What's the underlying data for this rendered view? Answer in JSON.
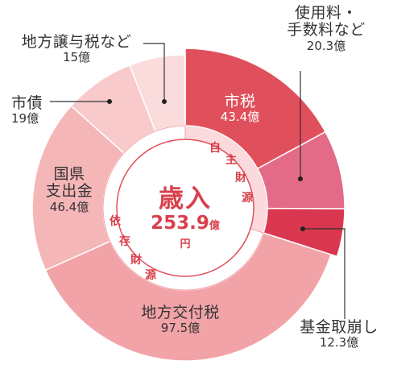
{
  "chart_data": {
    "type": "pie",
    "center": {
      "title": "歳入",
      "total": "253.9",
      "unit": "億円"
    },
    "groups": [
      {
        "name": "自主財源",
        "chars": [
          "自",
          "主",
          "財",
          "源"
        ]
      },
      {
        "name": "依存財源",
        "chars": [
          "依",
          "存",
          "財",
          "源"
        ]
      }
    ],
    "slices": [
      {
        "name": "市税",
        "value": 43.4,
        "value_label": "43.4億",
        "group": "自主財源",
        "color": "#e0505c"
      },
      {
        "name": "使用料・手数料など",
        "name_lines": [
          "使用料・",
          "手数料など"
        ],
        "value": 20.3,
        "value_label": "20.3億",
        "group": "自主財源",
        "color": "#e46b88"
      },
      {
        "name": "基金取崩し",
        "value": 12.3,
        "value_label": "12.3億",
        "group": "自主財源",
        "color": "#d9374f"
      },
      {
        "name": "地方交付税",
        "value": 97.5,
        "value_label": "97.5億",
        "group": "依存財源",
        "color": "#f2a3a7"
      },
      {
        "name": "国県支出金",
        "name_lines": [
          "国県",
          "支出金"
        ],
        "value": 46.4,
        "value_label": "46.4億",
        "group": "依存財源",
        "color": "#f5b6b8"
      },
      {
        "name": "市債",
        "value": 19,
        "value_label": "19億",
        "group": "依存財源",
        "color": "#f8cacb"
      },
      {
        "name": "地方譲与税など",
        "value": 15,
        "value_label": "15億",
        "group": "依存財源",
        "color": "#fadcdc"
      }
    ]
  }
}
